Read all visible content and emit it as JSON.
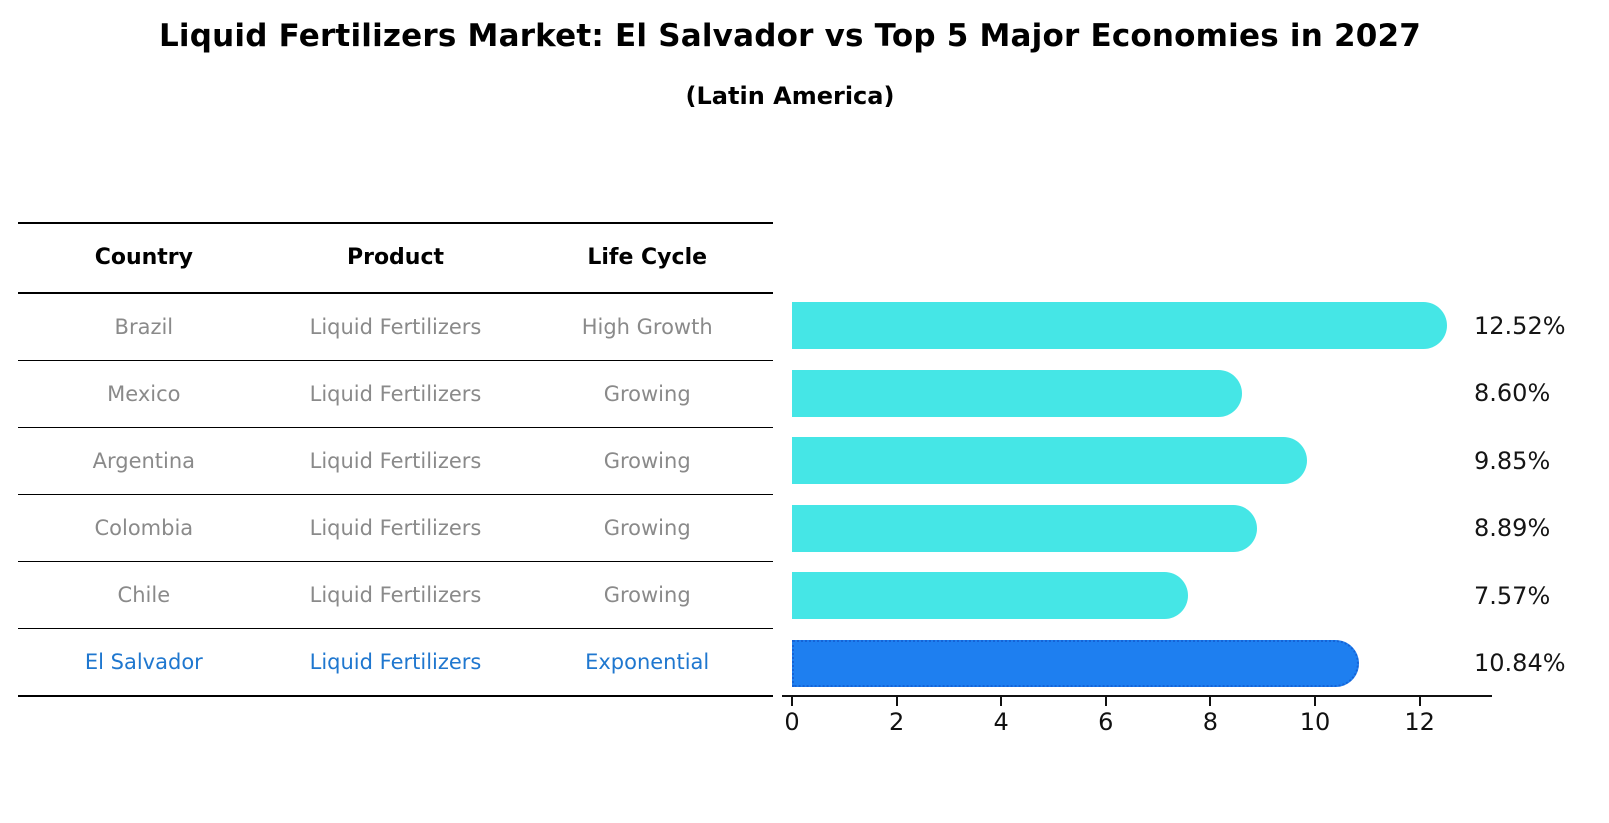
{
  "title": "Liquid Fertilizers Market: El Salvador vs Top 5 Major Economies in 2027",
  "subtitle": "(Latin America)",
  "table": {
    "headers": [
      "Country",
      "Product",
      "Life Cycle"
    ],
    "rows": [
      {
        "country": "Brazil",
        "product": "Liquid Fertilizers",
        "life_cycle": "High Growth",
        "highlighted": false
      },
      {
        "country": "Mexico",
        "product": "Liquid Fertilizers",
        "life_cycle": "Growing",
        "highlighted": false
      },
      {
        "country": "Argentina",
        "product": "Liquid Fertilizers",
        "life_cycle": "Growing",
        "highlighted": false
      },
      {
        "country": "Colombia",
        "product": "Liquid Fertilizers",
        "life_cycle": "Growing",
        "highlighted": false
      },
      {
        "country": "Chile",
        "product": "Liquid Fertilizers",
        "life_cycle": "Growing",
        "highlighted": false
      },
      {
        "country": "El Salvador",
        "product": "Liquid Fertilizers",
        "life_cycle": "Exponential",
        "highlighted": true
      }
    ]
  },
  "chart_data": {
    "type": "bar",
    "orientation": "horizontal",
    "title": "Liquid Fertilizers Market: El Salvador vs Top 5 Major Economies in 2027 (Latin America)",
    "categories": [
      "Brazil",
      "Mexico",
      "Argentina",
      "Colombia",
      "Chile",
      "El Salvador"
    ],
    "values": [
      12.52,
      8.6,
      9.85,
      8.89,
      7.57,
      10.84
    ],
    "value_labels": [
      "12.52%",
      "8.60%",
      "9.85%",
      "8.89%",
      "7.57%",
      "10.84%"
    ],
    "xticks": [
      0,
      2,
      4,
      6,
      8,
      10,
      12
    ],
    "xlim": [
      0,
      13.4
    ],
    "grid": false,
    "legend": "none",
    "highlight_index": 5,
    "bar_color": "#45E6E6",
    "highlight_color": "#1E7FF0",
    "highlight_border_color": "#1563D6"
  },
  "colors": {
    "background": "#ffffff",
    "row_text": "#8a8a8a",
    "highlight_text": "#1f77cf",
    "header_text": "#000000",
    "axis": "#111111",
    "value_text": "#151515"
  }
}
